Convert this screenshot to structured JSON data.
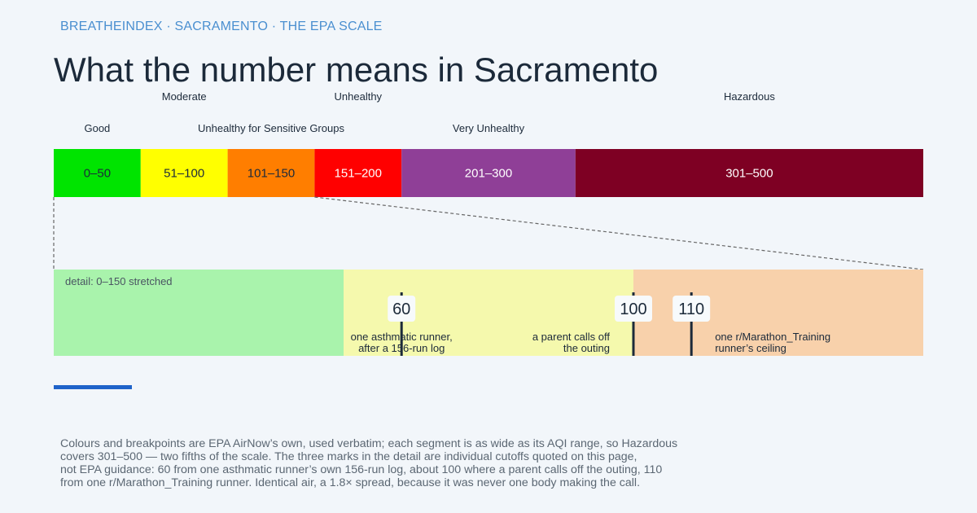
{
  "header": {
    "kicker": "BREATHEINDEX · SACRAMENTO · THE EPA SCALE",
    "title": "What the number means in Sacramento"
  },
  "chart_data": {
    "type": "bar",
    "orientation": "horizontal-segmented",
    "scale": {
      "min": 0,
      "max": 500
    },
    "segments": [
      {
        "name": "Good",
        "range": "0–50",
        "start": 0,
        "end": 50,
        "color": "#00e400",
        "label_row": "lower",
        "text_color": "#1c2a3a"
      },
      {
        "name": "Moderate",
        "range": "51–100",
        "start": 50,
        "end": 100,
        "color": "#ffff00",
        "label_row": "upper",
        "text_color": "#1c2a3a"
      },
      {
        "name": "Unhealthy for Sensitive Groups",
        "range": "101–150",
        "start": 100,
        "end": 150,
        "color": "#ff7e00",
        "label_row": "lower",
        "text_color": "#1c2a3a"
      },
      {
        "name": "Unhealthy",
        "range": "151–200",
        "start": 150,
        "end": 200,
        "color": "#ff0000",
        "label_row": "upper",
        "text_color": "#ffffff"
      },
      {
        "name": "Very Unhealthy",
        "range": "201–300",
        "start": 200,
        "end": 300,
        "color": "#8f3f97",
        "label_row": "lower",
        "text_color": "#ffffff"
      },
      {
        "name": "Hazardous",
        "range": "301–500",
        "start": 300,
        "end": 500,
        "color": "#7e0023",
        "label_row": "upper",
        "text_color": "#ffffff"
      }
    ],
    "detail": {
      "label": "detail: 0–150 stretched",
      "min": 0,
      "max": 150,
      "bands": [
        {
          "start": 0,
          "end": 50,
          "color": "#a9f3ac"
        },
        {
          "start": 50,
          "end": 100,
          "color": "#f5f9ad"
        },
        {
          "start": 100,
          "end": 150,
          "color": "#f8d1ab"
        }
      ],
      "marks": [
        {
          "value": 60,
          "label": "60",
          "note": [
            "one asthmatic runner,",
            "after a 156-run log"
          ],
          "note_align": "center"
        },
        {
          "value": 100,
          "label": "100",
          "note": [
            "a parent calls off",
            "the outing"
          ],
          "note_align": "right"
        },
        {
          "value": 110,
          "label": "110",
          "note": [
            "one r/Marathon_Training",
            "runner’s ceiling"
          ],
          "note_align": "left-offset"
        }
      ]
    }
  },
  "footnote": {
    "lines": [
      "Colours and breakpoints are EPA AirNow’s own, used verbatim; each segment is as wide as its AQI range, so Hazardous",
      "covers 301–500 — two fifths of the scale. The three marks in the detail are individual cutoffs quoted on this page,",
      "not EPA guidance: 60 from one asthmatic runner’s own 156-run log, about 100 where a parent calls off the outing, 110",
      "from one r/Marathon_Training runner. Identical air, a 1.8× spread, because it was never one body making the call."
    ]
  }
}
